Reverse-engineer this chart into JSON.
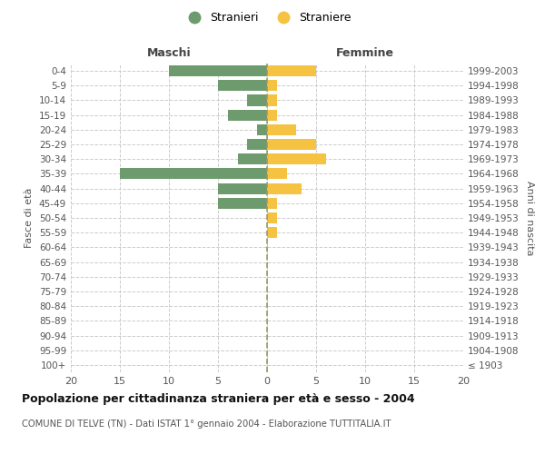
{
  "age_groups": [
    "100+",
    "95-99",
    "90-94",
    "85-89",
    "80-84",
    "75-79",
    "70-74",
    "65-69",
    "60-64",
    "55-59",
    "50-54",
    "45-49",
    "40-44",
    "35-39",
    "30-34",
    "25-29",
    "20-24",
    "15-19",
    "10-14",
    "5-9",
    "0-4"
  ],
  "birth_years": [
    "≤ 1903",
    "1904-1908",
    "1909-1913",
    "1914-1918",
    "1919-1923",
    "1924-1928",
    "1929-1933",
    "1934-1938",
    "1939-1943",
    "1944-1948",
    "1949-1953",
    "1954-1958",
    "1959-1963",
    "1964-1968",
    "1969-1973",
    "1974-1978",
    "1979-1983",
    "1984-1988",
    "1989-1993",
    "1994-1998",
    "1999-2003"
  ],
  "males": [
    0,
    0,
    0,
    0,
    0,
    0,
    0,
    0,
    0,
    0,
    0,
    5,
    5,
    15,
    3,
    2,
    1,
    4,
    2,
    5,
    10
  ],
  "females": [
    0,
    0,
    0,
    0,
    0,
    0,
    0,
    0,
    0,
    1,
    1,
    1,
    3.5,
    2,
    6,
    5,
    3,
    1,
    1,
    1,
    5
  ],
  "male_color": "#6e9b6e",
  "female_color": "#f5c242",
  "title_main": "Popolazione per cittadinanza straniera per età e sesso - 2004",
  "subtitle": "COMUNE DI TELVE (TN) - Dati ISTAT 1° gennaio 2004 - Elaborazione TUTTITALIA.IT",
  "xlabel_left": "Maschi",
  "xlabel_right": "Femmine",
  "ylabel_left": "Fasce di età",
  "ylabel_right": "Anni di nascita",
  "legend_male": "Stranieri",
  "legend_female": "Straniere",
  "xlim": 20,
  "background_color": "#ffffff",
  "grid_color": "#cccccc",
  "xticks": [
    20,
    15,
    10,
    5,
    0,
    5,
    10,
    15,
    20
  ]
}
